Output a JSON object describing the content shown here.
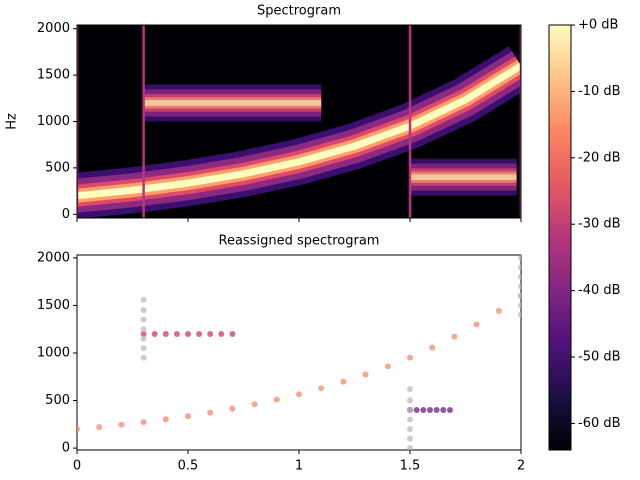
{
  "chart_data": [
    {
      "type": "spectrogram",
      "title": "Spectrogram",
      "ylabel": "Hz",
      "xlim": [
        0,
        2
      ],
      "ylim": [
        -40,
        2040
      ],
      "xticks": [
        0,
        0.5,
        1,
        1.5,
        2
      ],
      "show_xtick_labels": false,
      "yticks": [
        0,
        500,
        1000,
        1500,
        2000
      ],
      "background": "#000004",
      "band_colors": [
        "#3b0f70",
        "#8c2981",
        "#de4968",
        "#fe9f6d",
        "#fcfdbf"
      ],
      "ridges": [
        {
          "x": [
            0,
            0.25,
            0.5,
            0.75,
            1,
            1.25,
            1.5,
            1.75,
            2
          ],
          "y": [
            200,
            259,
            336,
            436,
            566,
            734,
            951,
            1234,
            1600
          ]
        },
        {
          "x": [
            0.3,
            0.7,
            1.1
          ],
          "y": [
            1200,
            1200,
            1200
          ]
        },
        {
          "x": [
            1.5,
            1.7,
            1.98
          ],
          "y": [
            400,
            400,
            400
          ]
        }
      ],
      "clicks": [
        0,
        0.3,
        1.5,
        2.0
      ],
      "click_color": "#b5367a"
    },
    {
      "type": "scatter",
      "title": "Reassigned spectrogram",
      "xlim": [
        0,
        2
      ],
      "ylim": [
        -20,
        2030
      ],
      "xticks": [
        0,
        0.5,
        1,
        1.5,
        2
      ],
      "yticks": [
        0,
        500,
        1000,
        1500,
        2000
      ],
      "series": [
        {
          "color": "#f08a6c",
          "x": [
            0,
            0.1,
            0.2,
            0.3,
            0.4,
            0.5,
            0.6,
            0.7,
            0.8,
            0.9,
            1.0,
            1.1,
            1.2,
            1.3,
            1.4,
            1.5,
            1.6,
            1.7,
            1.8,
            1.9,
            2.0
          ],
          "y": [
            200,
            221,
            246,
            273,
            303,
            336,
            373,
            414,
            459,
            510,
            566,
            628,
            697,
            774,
            859,
            951,
            1056,
            1172,
            1301,
            1443,
            1600
          ]
        },
        {
          "color": "#c43c75",
          "x": [
            0.3,
            0.35,
            0.4,
            0.45,
            0.5,
            0.55,
            0.6,
            0.65,
            0.7
          ],
          "y": [
            1200,
            1200,
            1200,
            1200,
            1200,
            1200,
            1200,
            1200,
            1200
          ]
        },
        {
          "color": "#6a1f80",
          "x": [
            1.5,
            1.53,
            1.56,
            1.59,
            1.62,
            1.65,
            1.68
          ],
          "y": [
            400,
            400,
            400,
            400,
            400,
            400,
            400
          ]
        },
        {
          "color": "#bbbbbb",
          "x": [
            0.3,
            0.3,
            0.3,
            0.3,
            0.3,
            0.3,
            0.3
          ],
          "y": [
            950,
            1050,
            1150,
            1250,
            1350,
            1450,
            1560
          ]
        },
        {
          "color": "#bbbbbb",
          "x": [
            1.5,
            1.5,
            1.5,
            1.5,
            1.5,
            1.5,
            1.5
          ],
          "y": [
            0,
            100,
            200,
            300,
            400,
            500,
            620
          ]
        },
        {
          "color": "#bbbbbb",
          "x": [
            2.0,
            2.0,
            2.0,
            2.0,
            2.0,
            2.0,
            2.0
          ],
          "y": [
            1400,
            1500,
            1600,
            1700,
            1800,
            1900,
            2000
          ]
        }
      ]
    },
    {
      "type": "colorbar",
      "lim": [
        -64,
        0
      ],
      "colors": [
        "#000004",
        "#1c1044",
        "#4f127b",
        "#812581",
        "#b5367a",
        "#e55964",
        "#fb8761",
        "#fec287",
        "#fcfdbf"
      ],
      "ticks": [
        {
          "value": 0,
          "label": "+0 dB"
        },
        {
          "value": -10,
          "label": "-10 dB"
        },
        {
          "value": -20,
          "label": "-20 dB"
        },
        {
          "value": -30,
          "label": "-30 dB"
        },
        {
          "value": -40,
          "label": "-40 dB"
        },
        {
          "value": -50,
          "label": "-50 dB"
        },
        {
          "value": -60,
          "label": "-60 dB"
        }
      ]
    }
  ]
}
